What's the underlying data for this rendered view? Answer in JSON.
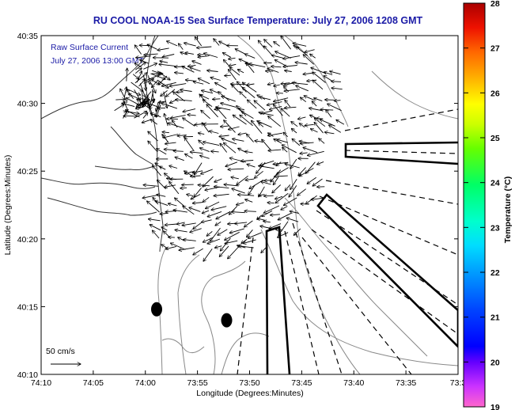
{
  "chart_data": {
    "type": "map-quiver",
    "title": "RU COOL  NOAA-15  Sea Surface Temperature:  July 27, 2006 1208 GMT",
    "annotation_lines": [
      "Raw Surface Current",
      "July 27, 2006 13:00 GMT"
    ],
    "xlabel": "Longitude (Degrees:Minutes)",
    "ylabel": "Latitude (Degrees:Minutes)",
    "x_ticks": [
      "74:10",
      "74:05",
      "74:00",
      "73:55",
      "73:50",
      "73:45",
      "73:40",
      "73:35",
      "73:3"
    ],
    "y_ticks": [
      "40:10",
      "40:15",
      "40:20",
      "40:25",
      "40:30",
      "40:35"
    ],
    "xlim_deg": [
      -74.1667,
      -73.5
    ],
    "ylim_deg": [
      40.1667,
      40.5833
    ],
    "scale_label": "50 cm/s",
    "scale_speed_cms": 50,
    "colorbar": {
      "label": "Temperature (°C)",
      "ticks": [
        "19",
        "20",
        "21",
        "22",
        "23",
        "24",
        "25",
        "26",
        "27",
        "28"
      ],
      "range": [
        19,
        28
      ]
    },
    "grid": false,
    "markers": [
      {
        "lon": -73.982,
        "lat": 40.2467
      },
      {
        "lon": -73.87,
        "lat": 40.2333
      }
    ]
  }
}
